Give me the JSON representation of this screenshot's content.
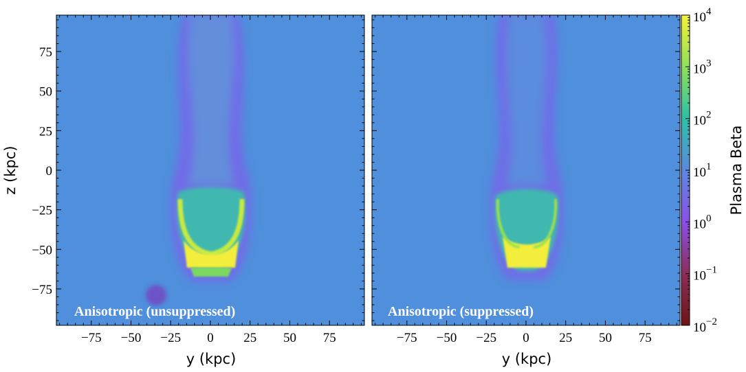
{
  "chart_data": {
    "type": "heatmap",
    "panels": [
      {
        "label": "Anisotropic (unsuppressed)",
        "xlabel": "y  (kpc)",
        "ylabel": "z  (kpc)",
        "xlim": [
          -97,
          97
        ],
        "ylim": [
          -98,
          98
        ],
        "xticks": [
          -75,
          -50,
          -25,
          0,
          25,
          50,
          75
        ],
        "yticks": [
          75,
          50,
          25,
          0,
          -25,
          -50,
          -75
        ]
      },
      {
        "label": "Anisotropic (suppressed)",
        "xlabel": "y  (kpc)",
        "ylabel": "",
        "xlim": [
          -97,
          97
        ],
        "ylim": [
          -98,
          98
        ],
        "xticks": [
          -75,
          -50,
          -25,
          0,
          25,
          50,
          75
        ],
        "yticks": []
      }
    ],
    "tick_labels": {
      "-75": "−75",
      "-50": "−50",
      "-25": "−25",
      "0": "0",
      "25": "25",
      "50": "50",
      "75": "75"
    },
    "colorbar": {
      "label": "Plasma Beta",
      "scale": "log",
      "range": [
        0.01,
        10000
      ],
      "ticks": [
        {
          "exp": 4,
          "base": "10",
          "sup": "4"
        },
        {
          "exp": 3,
          "base": "10",
          "sup": "3"
        },
        {
          "exp": 2,
          "base": "10",
          "sup": "2"
        },
        {
          "exp": 1,
          "base": "10",
          "sup": "1"
        },
        {
          "exp": 0,
          "base": "10",
          "sup": "0"
        },
        {
          "exp": -1,
          "base": "10",
          "sup": "−1"
        },
        {
          "exp": -2,
          "base": "10",
          "sup": "−2"
        }
      ],
      "colors": [
        "#6e1414",
        "#8a2e5a",
        "#8c4fe8",
        "#5a8ae0",
        "#2cc0a8",
        "#8ee05a",
        "#f6f23a"
      ]
    },
    "background_color": "#4f8fdc"
  }
}
